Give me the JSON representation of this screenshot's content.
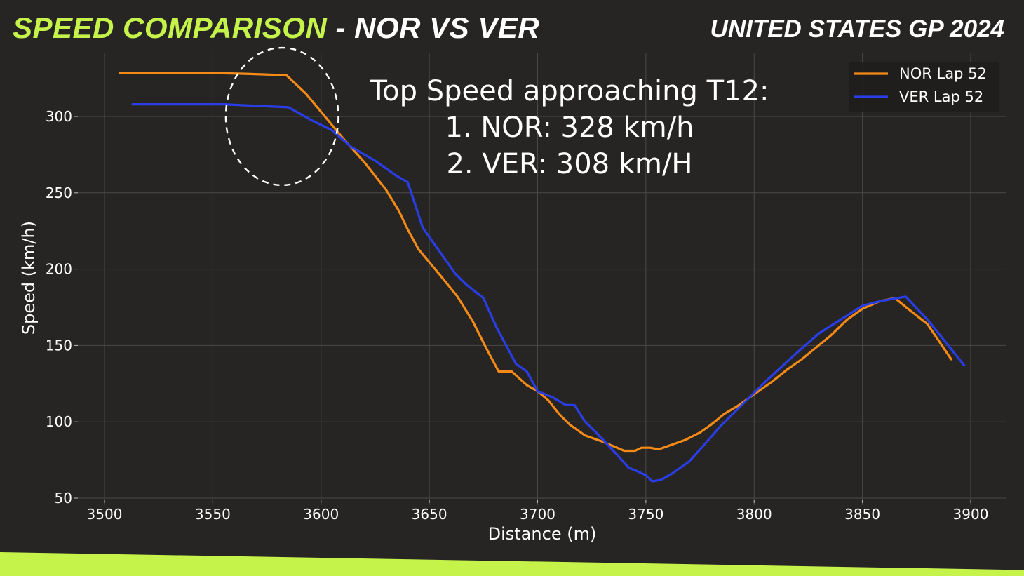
{
  "header": {
    "title_accent": "SPEED COMPARISON",
    "title_rest": " - NOR VS VER",
    "event": "UNITED STATES GP 2024"
  },
  "colors": {
    "background": "#262524",
    "accent": "#c6f34a",
    "nor": "#f58a17",
    "ver": "#2a3ee8",
    "grid": "#4a4948",
    "text": "#ffffff"
  },
  "chart_data": {
    "type": "line",
    "xlabel": "Distance (m)",
    "ylabel": "Speed (km/h)",
    "xlim": [
      3490,
      3918
    ],
    "ylim": [
      50,
      335
    ],
    "xticks": [
      3500,
      3550,
      3600,
      3650,
      3700,
      3750,
      3800,
      3850,
      3900
    ],
    "yticks": [
      50,
      100,
      150,
      200,
      250,
      300
    ],
    "grid": true,
    "legend_position": "top-right",
    "annotation": {
      "lines": [
        "Top Speed approaching T12:",
        "1. NOR: 328 km/h",
        "2. VER: 308 km/H"
      ],
      "highlight": {
        "cx": 3582,
        "cy": 300,
        "rx": 26,
        "ry": 45
      }
    },
    "series": [
      {
        "name": "NOR Lap 52",
        "color": "#f58a17",
        "points": [
          [
            3507,
            328.5
          ],
          [
            3550,
            328.5
          ],
          [
            3565,
            328
          ],
          [
            3584,
            327
          ],
          [
            3593,
            315
          ],
          [
            3600,
            303
          ],
          [
            3610,
            286
          ],
          [
            3620,
            270
          ],
          [
            3630,
            252
          ],
          [
            3636,
            238
          ],
          [
            3640,
            226
          ],
          [
            3645,
            213
          ],
          [
            3655,
            196
          ],
          [
            3663,
            182
          ],
          [
            3670,
            166
          ],
          [
            3676,
            149
          ],
          [
            3682,
            133
          ],
          [
            3688,
            133
          ],
          [
            3695,
            124
          ],
          [
            3700,
            120
          ],
          [
            3705,
            114
          ],
          [
            3710,
            105
          ],
          [
            3715,
            98
          ],
          [
            3722,
            91
          ],
          [
            3730,
            87
          ],
          [
            3735,
            84
          ],
          [
            3740,
            81
          ],
          [
            3745,
            81
          ],
          [
            3748,
            83
          ],
          [
            3752,
            83
          ],
          [
            3756,
            82
          ],
          [
            3760,
            84
          ],
          [
            3768,
            88
          ],
          [
            3775,
            93
          ],
          [
            3780,
            98
          ],
          [
            3786,
            105
          ],
          [
            3792,
            110
          ],
          [
            3800,
            118
          ],
          [
            3808,
            126
          ],
          [
            3815,
            134
          ],
          [
            3822,
            141
          ],
          [
            3828,
            148
          ],
          [
            3835,
            156
          ],
          [
            3843,
            167
          ],
          [
            3850,
            174
          ],
          [
            3858,
            179
          ],
          [
            3865,
            181
          ],
          [
            3872,
            173
          ],
          [
            3880,
            164
          ],
          [
            3891,
            141
          ]
        ]
      },
      {
        "name": "VER Lap 52",
        "color": "#2a3ee8",
        "points": [
          [
            3513,
            308
          ],
          [
            3555,
            308
          ],
          [
            3570,
            307
          ],
          [
            3585,
            306
          ],
          [
            3595,
            298
          ],
          [
            3605,
            291
          ],
          [
            3614,
            280
          ],
          [
            3625,
            271
          ],
          [
            3635,
            261
          ],
          [
            3640,
            257
          ],
          [
            3647,
            227
          ],
          [
            3655,
            211
          ],
          [
            3662,
            197
          ],
          [
            3667,
            190
          ],
          [
            3675,
            181
          ],
          [
            3681,
            162
          ],
          [
            3690,
            138
          ],
          [
            3695,
            133
          ],
          [
            3700,
            120
          ],
          [
            3707,
            116
          ],
          [
            3713,
            111
          ],
          [
            3717,
            111
          ],
          [
            3722,
            100
          ],
          [
            3727,
            93
          ],
          [
            3733,
            84
          ],
          [
            3737,
            78
          ],
          [
            3742,
            70
          ],
          [
            3747,
            67
          ],
          [
            3750,
            65
          ],
          [
            3753,
            61
          ],
          [
            3757,
            62
          ],
          [
            3762,
            66
          ],
          [
            3770,
            74
          ],
          [
            3777,
            85
          ],
          [
            3785,
            98
          ],
          [
            3795,
            112
          ],
          [
            3805,
            126
          ],
          [
            3818,
            143
          ],
          [
            3830,
            158
          ],
          [
            3840,
            167
          ],
          [
            3850,
            176
          ],
          [
            3858,
            179
          ],
          [
            3870,
            182
          ],
          [
            3880,
            167
          ],
          [
            3897,
            137
          ]
        ]
      }
    ]
  }
}
